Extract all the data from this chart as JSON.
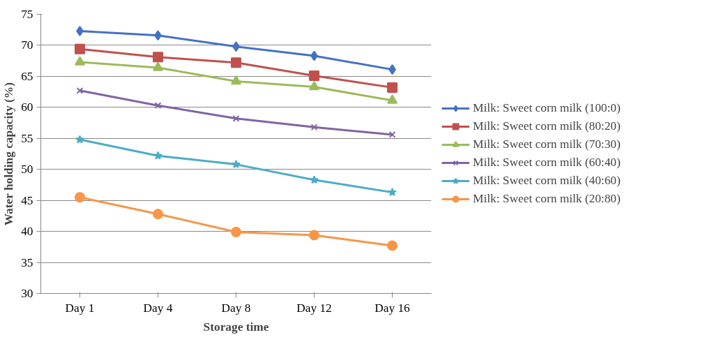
{
  "chart_data": {
    "type": "line",
    "xlabel": "Storage time",
    "ylabel": "Water holding capacity (%)",
    "categories": [
      "Day 1",
      "Day 4",
      "Day 8",
      "Day 12",
      "Day 16"
    ],
    "ylim": [
      30,
      75
    ],
    "yticks": [
      30,
      35,
      40,
      45,
      50,
      55,
      60,
      65,
      70,
      75
    ],
    "grid": "y",
    "legend": "right",
    "line_style": "solid",
    "series": [
      {
        "name": "Milk: Sweet corn milk (100:0)",
        "color": "#4472c4",
        "marker": "diamond",
        "values": [
          72.3,
          71.6,
          69.8,
          68.3,
          66.1
        ]
      },
      {
        "name": "Milk: Sweet corn milk (80:20)",
        "color": "#c0504d",
        "marker": "square",
        "values": [
          69.4,
          68.1,
          67.2,
          65.1,
          63.2
        ]
      },
      {
        "name": "Milk: Sweet corn milk (70:30)",
        "color": "#9bbb59",
        "marker": "triangle",
        "values": [
          67.3,
          66.4,
          64.2,
          63.3,
          61.1
        ]
      },
      {
        "name": "Milk: Sweet corn milk (60:40)",
        "color": "#8064a2",
        "marker": "cross",
        "values": [
          62.7,
          60.3,
          58.2,
          56.8,
          55.6
        ]
      },
      {
        "name": "Milk: Sweet corn milk (40:60)",
        "color": "#4bacc6",
        "marker": "star",
        "values": [
          54.8,
          52.2,
          50.8,
          48.3,
          46.3
        ]
      },
      {
        "name": "Milk: Sweet corn milk (20:80)",
        "color": "#f79646",
        "marker": "circle",
        "values": [
          45.5,
          42.8,
          39.9,
          39.4,
          37.7
        ]
      }
    ]
  }
}
